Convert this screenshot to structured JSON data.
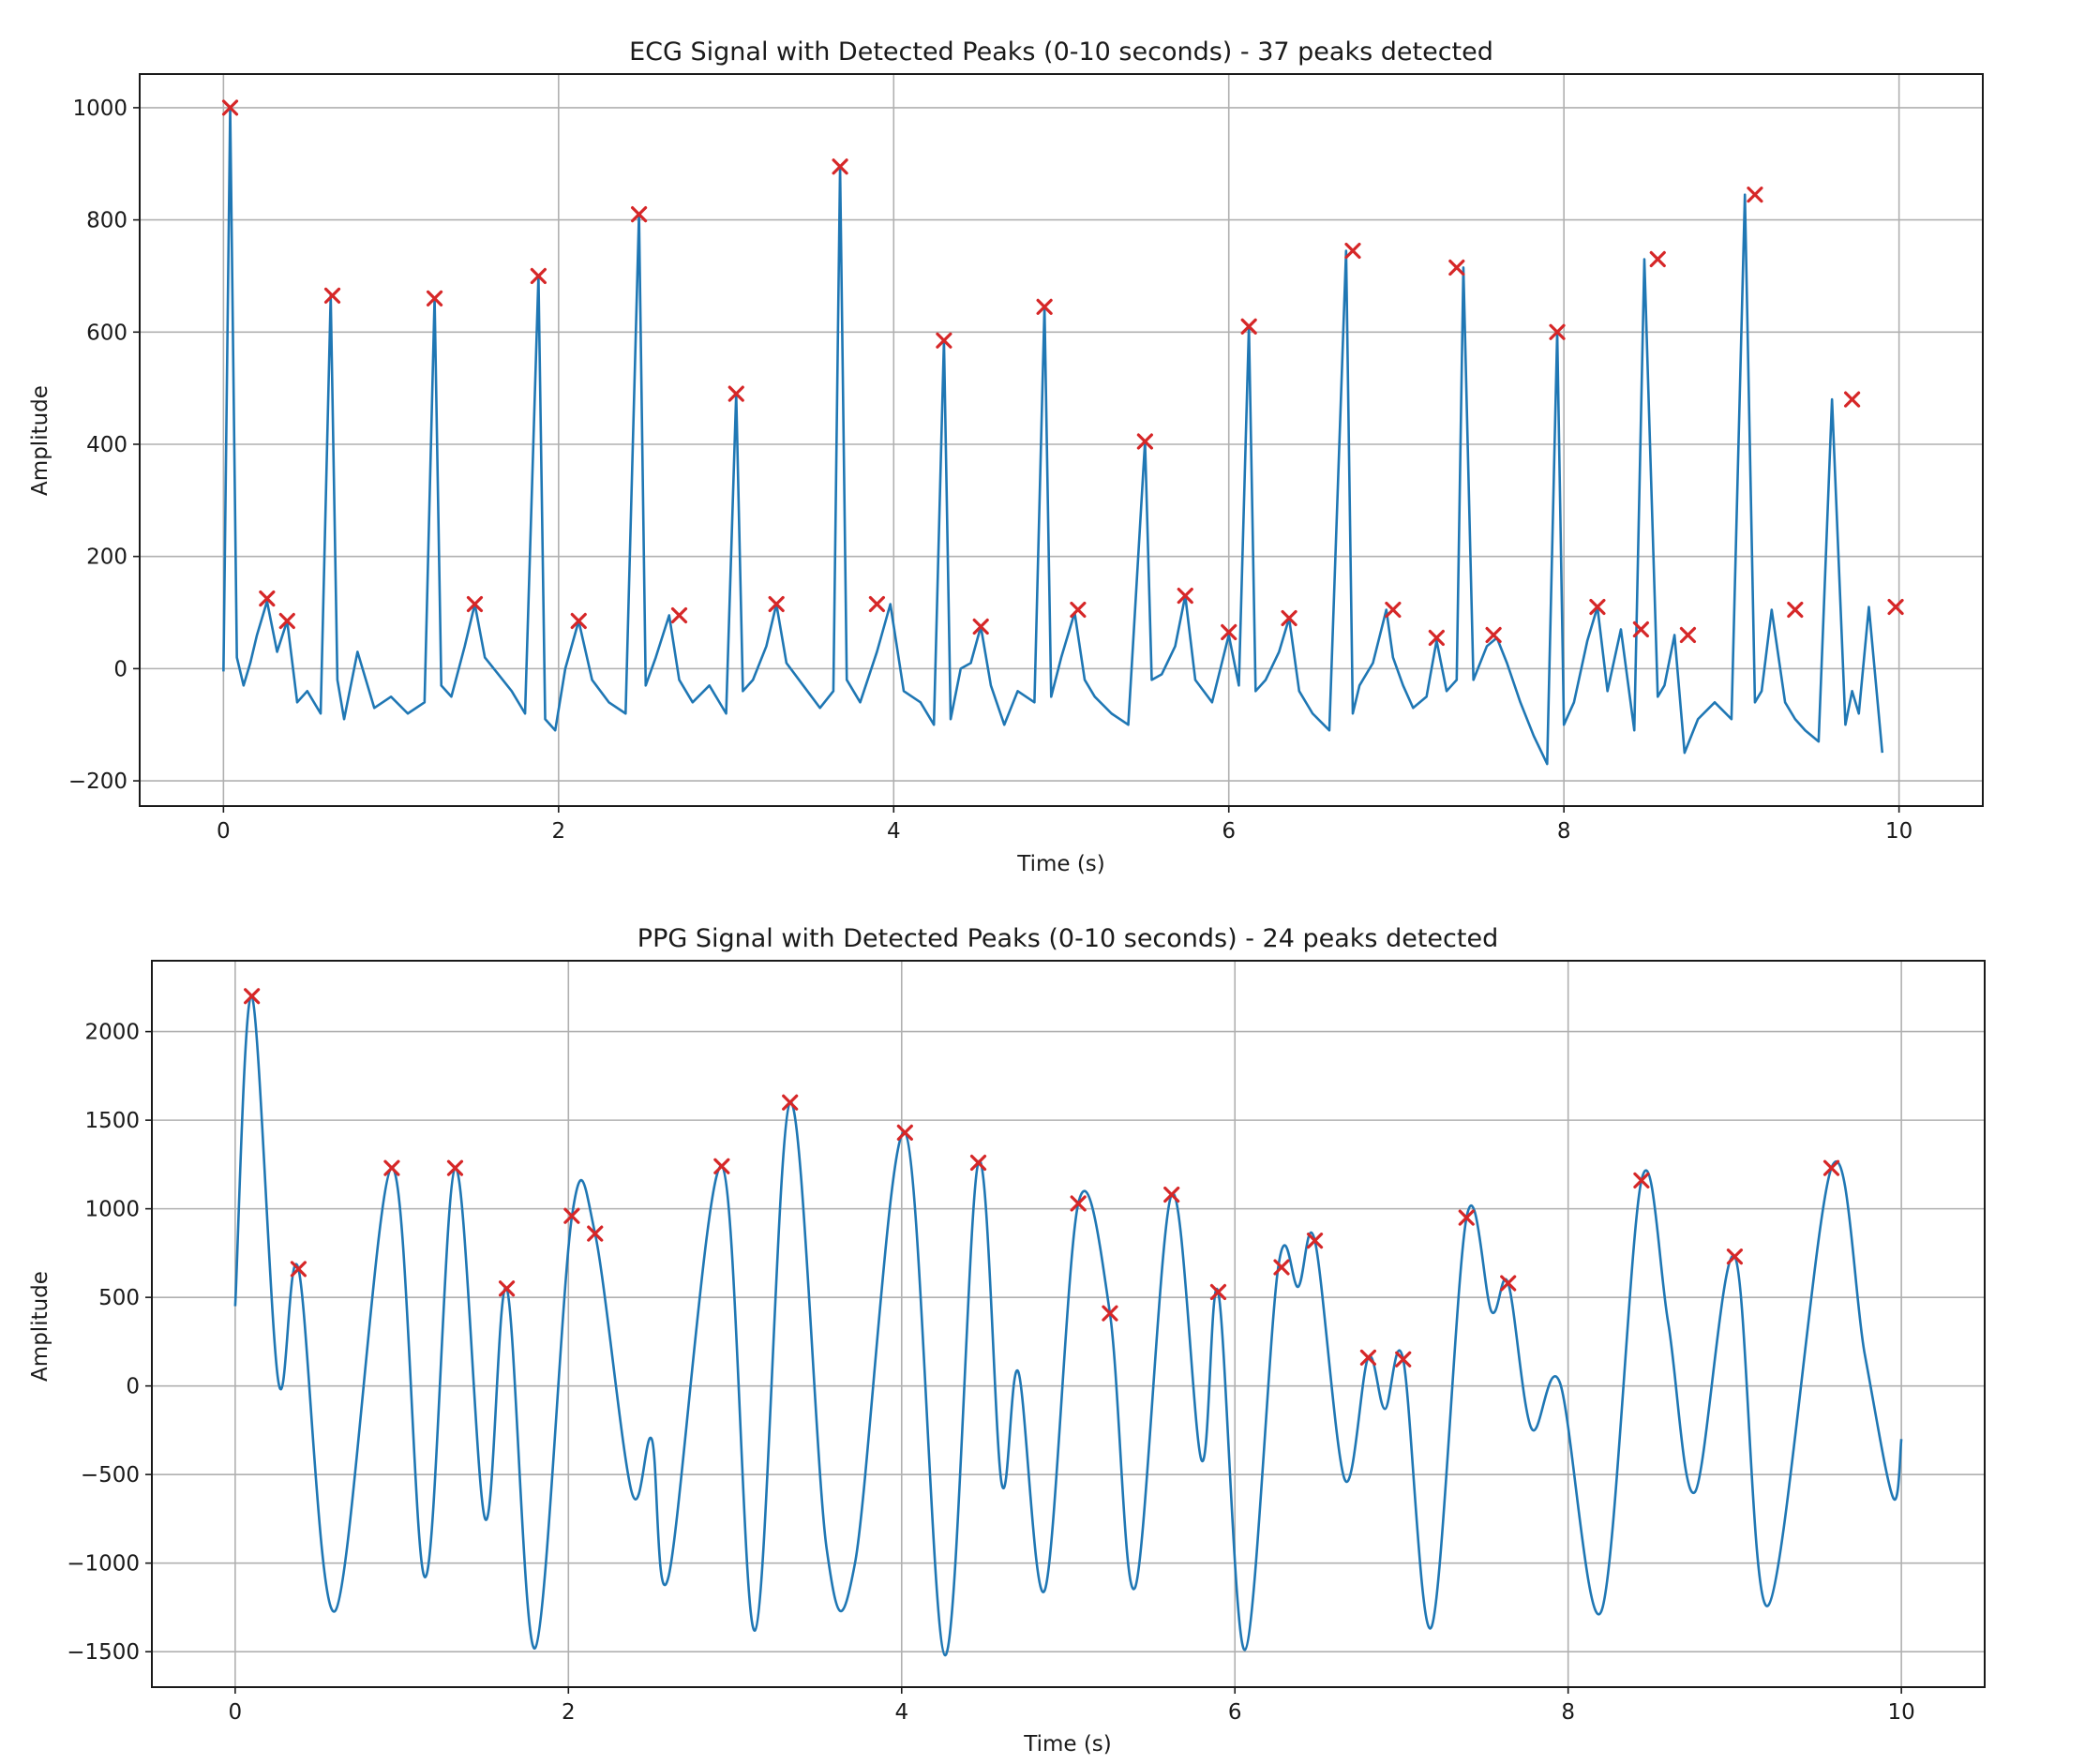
{
  "chart_data": [
    {
      "id": "ecg",
      "type": "line",
      "title": "ECG Signal with Detected Peaks (0-10 seconds) - 37 peaks detected",
      "xlabel": "Time (s)",
      "ylabel": "Amplitude",
      "xlim": [
        -0.5,
        10.5
      ],
      "ylim": [
        -245,
        1060
      ],
      "xticks": [
        0,
        2,
        4,
        6,
        8,
        10
      ],
      "yticks": [
        -200,
        0,
        200,
        400,
        600,
        800,
        1000
      ],
      "grid": true,
      "colors": {
        "signal": "#1f77b4",
        "peaks": "#d62728"
      },
      "signal_x": [
        0,
        0.04,
        0.08,
        0.12,
        0.16,
        0.2,
        0.26,
        0.32,
        0.38,
        0.44,
        0.5,
        0.58,
        0.64,
        0.68,
        0.72,
        0.8,
        0.9,
        1.0,
        1.1,
        1.2,
        1.26,
        1.3,
        1.36,
        1.44,
        1.5,
        1.56,
        1.64,
        1.72,
        1.8,
        1.88,
        1.92,
        1.98,
        2.04,
        2.12,
        2.2,
        2.3,
        2.4,
        2.48,
        2.52,
        2.58,
        2.66,
        2.72,
        2.8,
        2.9,
        3.0,
        3.06,
        3.1,
        3.16,
        3.24,
        3.3,
        3.36,
        3.46,
        3.56,
        3.64,
        3.68,
        3.72,
        3.8,
        3.9,
        3.98,
        4.06,
        4.16,
        4.24,
        4.3,
        4.34,
        4.4,
        4.46,
        4.52,
        4.58,
        4.66,
        4.74,
        4.84,
        4.9,
        4.94,
        5.0,
        5.08,
        5.14,
        5.2,
        5.3,
        5.4,
        5.5,
        5.54,
        5.6,
        5.68,
        5.74,
        5.8,
        5.9,
        6.0,
        6.06,
        6.12,
        6.16,
        6.22,
        6.3,
        6.36,
        6.42,
        6.5,
        6.6,
        6.7,
        6.74,
        6.78,
        6.86,
        6.94,
        6.98,
        7.04,
        7.1,
        7.18,
        7.24,
        7.3,
        7.36,
        7.4,
        7.46,
        7.54,
        7.6,
        7.66,
        7.74,
        7.82,
        7.9,
        7.96,
        8.0,
        8.06,
        8.14,
        8.2,
        8.26,
        8.34,
        8.42,
        8.48,
        8.56,
        8.6,
        8.66,
        8.72,
        8.8,
        8.9,
        9.0,
        9.08,
        9.14,
        9.18,
        9.24,
        9.32,
        9.38,
        9.44,
        9.52,
        9.6,
        9.68,
        9.72,
        9.76,
        9.82,
        9.9,
        9.96,
        10.0
      ],
      "signal_y": [
        -5,
        1000,
        20,
        -30,
        10,
        60,
        120,
        30,
        85,
        -60,
        -40,
        -80,
        665,
        -20,
        -90,
        30,
        -70,
        -50,
        -80,
        -60,
        660,
        -30,
        -50,
        40,
        115,
        20,
        -10,
        -40,
        -80,
        700,
        -90,
        -110,
        0,
        85,
        -20,
        -60,
        -80,
        810,
        -30,
        20,
        95,
        -20,
        -60,
        -30,
        -80,
        490,
        -40,
        -20,
        40,
        115,
        10,
        -30,
        -70,
        -40,
        895,
        -20,
        -60,
        30,
        115,
        -40,
        -60,
        -100,
        585,
        -90,
        0,
        10,
        75,
        -30,
        -100,
        -40,
        -60,
        645,
        -50,
        20,
        100,
        -20,
        -50,
        -80,
        -100,
        405,
        -20,
        -10,
        40,
        130,
        -20,
        -60,
        60,
        -30,
        610,
        -40,
        -20,
        30,
        90,
        -40,
        -80,
        -110,
        745,
        -80,
        -30,
        10,
        105,
        20,
        -30,
        -70,
        -50,
        50,
        -40,
        -20,
        715,
        -20,
        40,
        55,
        10,
        -60,
        -120,
        -170,
        600,
        -100,
        -60,
        50,
        110,
        -40,
        70,
        -110,
        730,
        -50,
        -30,
        60,
        -150,
        -90,
        -60,
        -90,
        845,
        -60,
        -40,
        105,
        -60,
        -90,
        -110,
        -130,
        480,
        -100,
        -40,
        -80,
        110,
        -150
      ],
      "peaks_x": [
        0.04,
        0.26,
        0.38,
        0.65,
        1.26,
        1.5,
        1.88,
        2.12,
        2.48,
        2.72,
        3.06,
        3.3,
        3.68,
        3.9,
        4.3,
        4.52,
        4.9,
        5.1,
        5.5,
        5.74,
        6.0,
        6.12,
        6.36,
        6.74,
        6.98,
        7.24,
        7.36,
        7.58,
        7.96,
        8.2,
        8.46,
        8.56,
        8.74,
        9.14,
        9.38,
        9.72,
        9.98
      ],
      "peaks_y": [
        1000,
        125,
        85,
        665,
        660,
        115,
        700,
        85,
        810,
        95,
        490,
        115,
        895,
        115,
        585,
        75,
        645,
        105,
        405,
        130,
        65,
        610,
        90,
        745,
        105,
        55,
        715,
        60,
        600,
        110,
        70,
        730,
        60,
        845,
        105,
        480,
        110
      ]
    },
    {
      "id": "ppg",
      "type": "line",
      "title": "PPG Signal with Detected Peaks (0-10 seconds) - 24 peaks detected",
      "xlabel": "Time (s)",
      "ylabel": "Amplitude",
      "xlim": [
        -0.5,
        10.5
      ],
      "ylim": [
        -1700,
        2400
      ],
      "xticks": [
        0,
        2,
        4,
        6,
        8,
        10
      ],
      "yticks": [
        -1500,
        -1000,
        -500,
        0,
        500,
        1000,
        1500,
        2000
      ],
      "grid": true,
      "colors": {
        "signal": "#1f77b4",
        "peaks": "#d62728"
      },
      "signal_x": [
        0,
        0.1,
        0.26,
        0.38,
        0.6,
        0.94,
        1.14,
        1.32,
        1.5,
        1.63,
        1.8,
        2.02,
        2.16,
        2.38,
        2.5,
        2.6,
        2.92,
        3.12,
        3.33,
        3.55,
        3.72,
        4.02,
        4.26,
        4.46,
        4.6,
        4.7,
        4.86,
        5.06,
        5.25,
        5.4,
        5.62,
        5.8,
        5.9,
        6.06,
        6.26,
        6.38,
        6.48,
        6.66,
        6.8,
        6.9,
        7.01,
        7.18,
        7.39,
        7.54,
        7.64,
        7.78,
        7.95,
        8.2,
        8.44,
        8.6,
        8.76,
        9.0,
        9.2,
        9.58,
        9.78,
        9.95,
        10.0
      ],
      "signal_y": [
        450,
        2200,
        20,
        660,
        -1270,
        1230,
        -1080,
        1230,
        -750,
        550,
        -1480,
        950,
        860,
        -600,
        -300,
        -1080,
        1240,
        -1380,
        1600,
        -920,
        -1000,
        1430,
        -1520,
        1260,
        -550,
        80,
        -1150,
        1030,
        410,
        -1140,
        1080,
        -420,
        530,
        -1490,
        670,
        560,
        820,
        -530,
        160,
        -130,
        150,
        -1360,
        950,
        420,
        580,
        -240,
        20,
        -1270,
        1160,
        360,
        -600,
        730,
        -1240,
        1230,
        180,
        -630,
        -300
      ],
      "peaks_x": [
        0.1,
        0.38,
        0.94,
        1.32,
        1.63,
        2.02,
        2.16,
        2.92,
        3.33,
        4.02,
        4.46,
        5.06,
        5.25,
        5.62,
        5.9,
        6.28,
        6.48,
        6.8,
        7.01,
        7.39,
        7.64,
        8.44,
        9.0,
        9.58
      ],
      "peaks_y": [
        2200,
        660,
        1230,
        1230,
        550,
        960,
        860,
        1240,
        1600,
        1430,
        1260,
        1030,
        410,
        1080,
        530,
        670,
        820,
        160,
        150,
        950,
        580,
        1160,
        730,
        1230
      ]
    }
  ]
}
